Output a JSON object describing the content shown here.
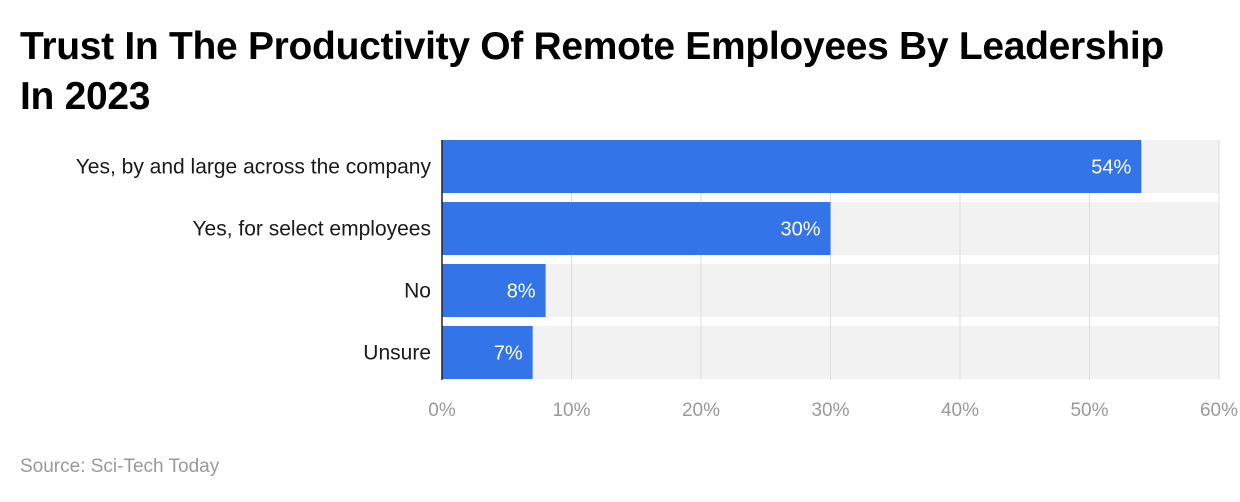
{
  "title": "Trust In The Productivity Of Remote Employees By Leadership In 2023",
  "source": "Source: Sci-Tech Today",
  "chart_data": {
    "type": "bar",
    "orientation": "horizontal",
    "categories": [
      "Yes, by and large across the company",
      "Yes, for select employees",
      "No",
      "Unsure"
    ],
    "values": [
      54,
      30,
      8,
      7
    ],
    "data_labels": [
      "54%",
      "30%",
      "8%",
      "7%"
    ],
    "xlim": [
      0,
      60
    ],
    "x_ticks": [
      0,
      10,
      20,
      30,
      40,
      50,
      60
    ],
    "x_tick_labels": [
      "0%",
      "10%",
      "20%",
      "30%",
      "40%",
      "50%",
      "60%"
    ],
    "grid": true,
    "bar_color": "#3375e8",
    "track_color": "#f2f2f2",
    "grid_color": "#dcdcdc"
  }
}
